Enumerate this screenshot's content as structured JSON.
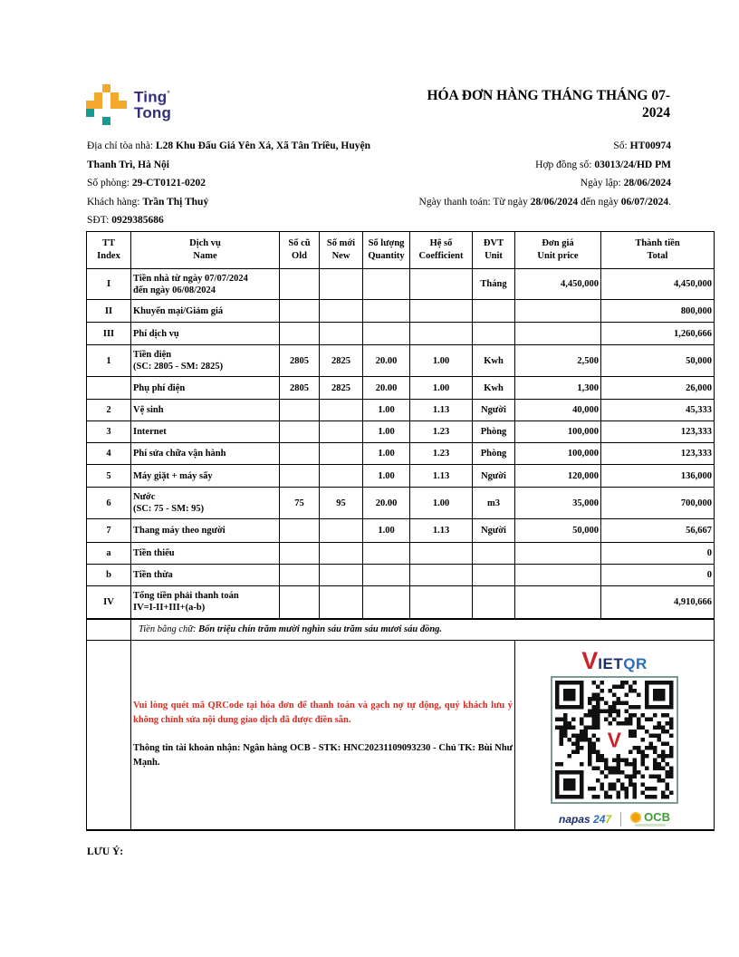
{
  "logo": {
    "line1": "Ting",
    "reg": "°",
    "line2": "Tong"
  },
  "title": "HÓA ĐƠN HÀNG THÁNG THÁNG 07-2024",
  "info_left": [
    [
      {
        "t": "Địa chỉ tòa nhà: ",
        "b": false
      },
      {
        "t": "L28 Khu Đấu Giá Yên Xá, Xã Tân Triều, Huyện Thanh Trì, Hà Nội",
        "b": true
      }
    ],
    [
      {
        "t": "Số phòng: ",
        "b": false
      },
      {
        "t": "29-CT0121-0202",
        "b": true
      }
    ],
    [
      {
        "t": "Khách hàng: ",
        "b": false
      },
      {
        "t": "Trần Thị Thuỷ",
        "b": true
      }
    ],
    [
      {
        "t": "SĐT: ",
        "b": false
      },
      {
        "t": "0929385686",
        "b": true
      }
    ]
  ],
  "info_right": [
    [
      {
        "t": "Số: ",
        "b": false
      },
      {
        "t": "HT00974",
        "b": true
      }
    ],
    [
      {
        "t": "Hợp đồng số: ",
        "b": false
      },
      {
        "t": "03013/24/HD PM",
        "b": true
      }
    ],
    [
      {
        "t": "Ngày lập: ",
        "b": false
      },
      {
        "t": "28/06/2024",
        "b": true
      }
    ],
    [
      {
        "t": "Ngày thanh toán: Từ ngày ",
        "b": false
      },
      {
        "t": "28/06/2024",
        "b": true
      },
      {
        "t": " đến ngày ",
        "b": false
      },
      {
        "t": "06/07/2024",
        "b": true
      },
      {
        "t": ".",
        "b": false
      }
    ]
  ],
  "table": {
    "columns": [
      {
        "vi": "TT",
        "en": "Index"
      },
      {
        "vi": "Dịch vụ",
        "en": "Name"
      },
      {
        "vi": "Số cũ",
        "en": "Old"
      },
      {
        "vi": "Số mới",
        "en": "New"
      },
      {
        "vi": "Số lượng",
        "en": "Quantity"
      },
      {
        "vi": "Hệ số",
        "en": "Coefficient"
      },
      {
        "vi": "ĐVT",
        "en": "Unit"
      },
      {
        "vi": "Đơn giá",
        "en": "Unit price"
      },
      {
        "vi": "Thành tiền",
        "en": "Total"
      }
    ],
    "rows": [
      {
        "tt": "I",
        "name": "Tiền nhà từ ngày 07/07/2024\nđến ngày 06/08/2024",
        "old": "",
        "new": "",
        "qty": "",
        "coef": "",
        "unit": "Tháng",
        "price": "4,450,000",
        "total": "4,450,000"
      },
      {
        "tt": "II",
        "name": "Khuyến mại/Giảm giá",
        "old": "",
        "new": "",
        "qty": "",
        "coef": "",
        "unit": "",
        "price": "",
        "total": "800,000"
      },
      {
        "tt": "III",
        "name": "Phí dịch vụ",
        "old": "",
        "new": "",
        "qty": "",
        "coef": "",
        "unit": "",
        "price": "",
        "total": "1,260,666"
      },
      {
        "tt": "1",
        "name": "Tiền điện\n(SC: 2805 - SM: 2825)",
        "old": "2805",
        "new": "2825",
        "qty": "20.00",
        "coef": "1.00",
        "unit": "Kwh",
        "price": "2,500",
        "total": "50,000"
      },
      {
        "tt": "",
        "name": "Phụ phí điện",
        "old": "2805",
        "new": "2825",
        "qty": "20.00",
        "coef": "1.00",
        "unit": "Kwh",
        "price": "1,300",
        "total": "26,000"
      },
      {
        "tt": "2",
        "name": "Vệ sinh",
        "old": "",
        "new": "",
        "qty": "1.00",
        "coef": "1.13",
        "unit": "Người",
        "price": "40,000",
        "total": "45,333"
      },
      {
        "tt": "3",
        "name": "Internet",
        "old": "",
        "new": "",
        "qty": "1.00",
        "coef": "1.23",
        "unit": "Phòng",
        "price": "100,000",
        "total": "123,333"
      },
      {
        "tt": "4",
        "name": "Phí sửa chữa vận hành",
        "old": "",
        "new": "",
        "qty": "1.00",
        "coef": "1.23",
        "unit": "Phòng",
        "price": "100,000",
        "total": "123,333"
      },
      {
        "tt": "5",
        "name": "Máy giặt + máy sấy",
        "old": "",
        "new": "",
        "qty": "1.00",
        "coef": "1.13",
        "unit": "Người",
        "price": "120,000",
        "total": "136,000"
      },
      {
        "tt": "6",
        "name": "Nước\n(SC: 75 - SM: 95)",
        "old": "75",
        "new": "95",
        "qty": "20.00",
        "coef": "1.00",
        "unit": "m3",
        "price": "35,000",
        "total": "700,000"
      },
      {
        "tt": "7",
        "name": "Thang máy theo người",
        "old": "",
        "new": "",
        "qty": "1.00",
        "coef": "1.13",
        "unit": "Người",
        "price": "50,000",
        "total": "56,667"
      },
      {
        "tt": "a",
        "name": "Tiền thiếu",
        "old": "",
        "new": "",
        "qty": "",
        "coef": "",
        "unit": "",
        "price": "",
        "total": "0"
      },
      {
        "tt": "b",
        "name": "Tiền thừa",
        "old": "",
        "new": "",
        "qty": "",
        "coef": "",
        "unit": "",
        "price": "",
        "total": "0"
      },
      {
        "tt": "IV",
        "name": "Tổng tiền phải thanh toán\nIV=I-II+III+(a-b)",
        "old": "",
        "new": "",
        "qty": "",
        "coef": "",
        "unit": "",
        "price": "",
        "total": "4,910,666"
      }
    ],
    "amount_in_words": [
      {
        "t": "Tiền bằng chữ: ",
        "b": false
      },
      {
        "t": "Bốn triệu chín trăm mười nghìn sáu trăm sáu mươi sáu đồng.",
        "b": true
      }
    ],
    "payment_note": "Vui lòng quét mã QRCode tại hóa đơn để thanh toán và gạch nợ tự động, quý khách lưu ý không chỉnh sửa nội dung giao dịch đã được điền sẵn.",
    "account_info": [
      {
        "t": "Thông tin tài khoản nhận: Ngân hàng OCB - STK: ",
        "b": false
      },
      {
        "t": "HNC20231109093230",
        "b": true
      },
      {
        "t": " - Chủ TK: ",
        "b": false
      },
      {
        "t": "Bùi Như Mạnh",
        "b": true
      },
      {
        "t": ".",
        "b": false
      }
    ]
  },
  "qr": {
    "logo_v": "V",
    "logo_iet": "IET",
    "logo_qr": "QR",
    "center_letter": "V",
    "napas_word": "napas",
    "napas_24": "24",
    "napas_7": "7",
    "bank": "OCB"
  },
  "colors": {
    "brand_yellow": "#F4A82C",
    "brand_teal": "#169B8F",
    "brand_navy": "#312F7A",
    "alert_red": "#D92A21",
    "vietqr_red": "#CE2127",
    "vietqr_navy": "#1A2F6B",
    "vietqr_blue": "#2B6CB8",
    "napas_green": "#A8C813",
    "ocb_orange": "#F59E00",
    "ocb_green": "#3F9C35"
  },
  "footer_note": "LƯU Ý:"
}
